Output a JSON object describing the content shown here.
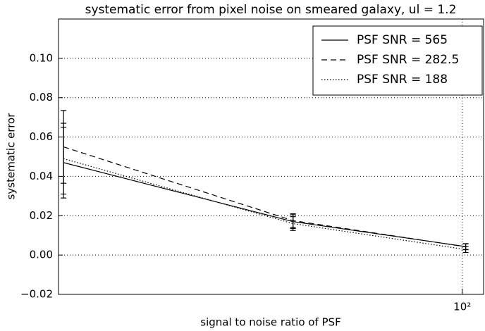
{
  "chart_data": {
    "type": "line",
    "title": "systematic error from pixel noise on smeared galaxy, ul = 1.2",
    "x_label": "signal to noise ratio of PSF",
    "y_label": "systematic error",
    "xscale": "log",
    "x": [
      20,
      50.5,
      101.4
    ],
    "series": [
      {
        "name": "PSF SNR = 565",
        "color": "#000000",
        "dash": "solid",
        "values": [
          0.047,
          0.017,
          0.0043
        ],
        "errors": [
          0.018,
          0.0035,
          0.0015
        ]
      },
      {
        "name": "PSF SNR = 282.5",
        "color": "#000000",
        "dash": "dashed",
        "values": [
          0.055,
          0.0175,
          0.0042
        ],
        "errors": [
          0.0185,
          0.0035,
          0.0015
        ]
      },
      {
        "name": "PSF SNR = 188",
        "color": "#000000",
        "dash": "dotted",
        "values": [
          0.049,
          0.016,
          0.0028
        ],
        "errors": [
          0.018,
          0.0035,
          0.0015
        ]
      }
    ],
    "xlim": [
      19.6,
      109
    ],
    "ylim": [
      -0.02,
      0.12
    ],
    "xticks": [
      {
        "value": 100,
        "label": "10²"
      }
    ],
    "yticks": [
      {
        "value": -0.02,
        "label": "−0.02"
      },
      {
        "value": 0,
        "label": "0.00"
      },
      {
        "value": 0.02,
        "label": "0.02"
      },
      {
        "value": 0.04,
        "label": "0.04"
      },
      {
        "value": 0.06,
        "label": "0.06"
      },
      {
        "value": 0.08,
        "label": "0.08"
      },
      {
        "value": 0.1,
        "label": "0.10"
      }
    ],
    "grid": true,
    "legend": "upper right"
  }
}
